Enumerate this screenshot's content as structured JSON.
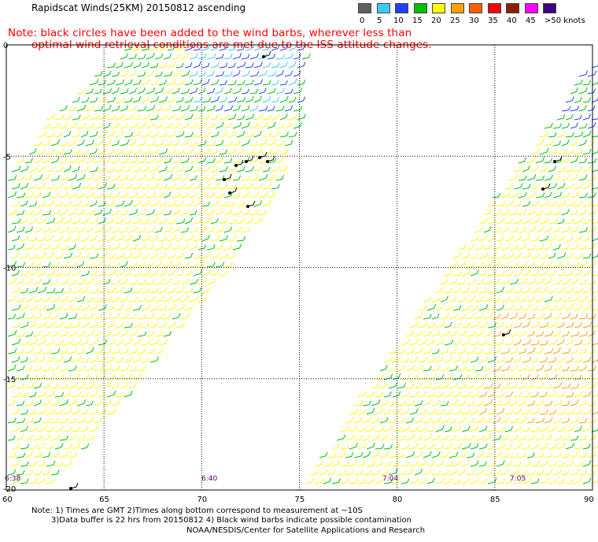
{
  "header": {
    "title": "Rapidscat Winds(25KM) 20150812 ascending",
    "note_line1": "Note: black circles have been added to the wind barbs, wherever less than",
    "note_line2": "optimal wind retrieval conditions are met due to the ISS attitude changes."
  },
  "legend": {
    "labels": [
      "0",
      "5",
      "10",
      "15",
      "20",
      "25",
      "30",
      "35",
      "40",
      "45",
      ">50 knots"
    ],
    "colors": [
      "#606060",
      "#40c8ff",
      "#2040ff",
      "#00c000",
      "#ffff00",
      "#ffa000",
      "#ff6000",
      "#ff0000",
      "#8b2000",
      "#ff00ff",
      "#400080"
    ]
  },
  "axes": {
    "lon_labels": [
      "60",
      "65",
      "70",
      "75",
      "80",
      "85",
      "90"
    ],
    "lat_labels": [
      "0",
      "-5",
      "-10",
      "-15",
      "-20"
    ]
  },
  "times": [
    "6:38",
    "6:40",
    "7:04",
    "7:05"
  ],
  "footer": {
    "line1": "Note: 1) Times are GMT 2)Times along bottom correspond to measurement at ~10S",
    "line2": "3)Data buffer is 22 hrs from 20150812 4) Black wind barbs indicate possible contamination",
    "line3": "NOAA/NESDIS/Center for Satellite Applications and Research"
  }
}
